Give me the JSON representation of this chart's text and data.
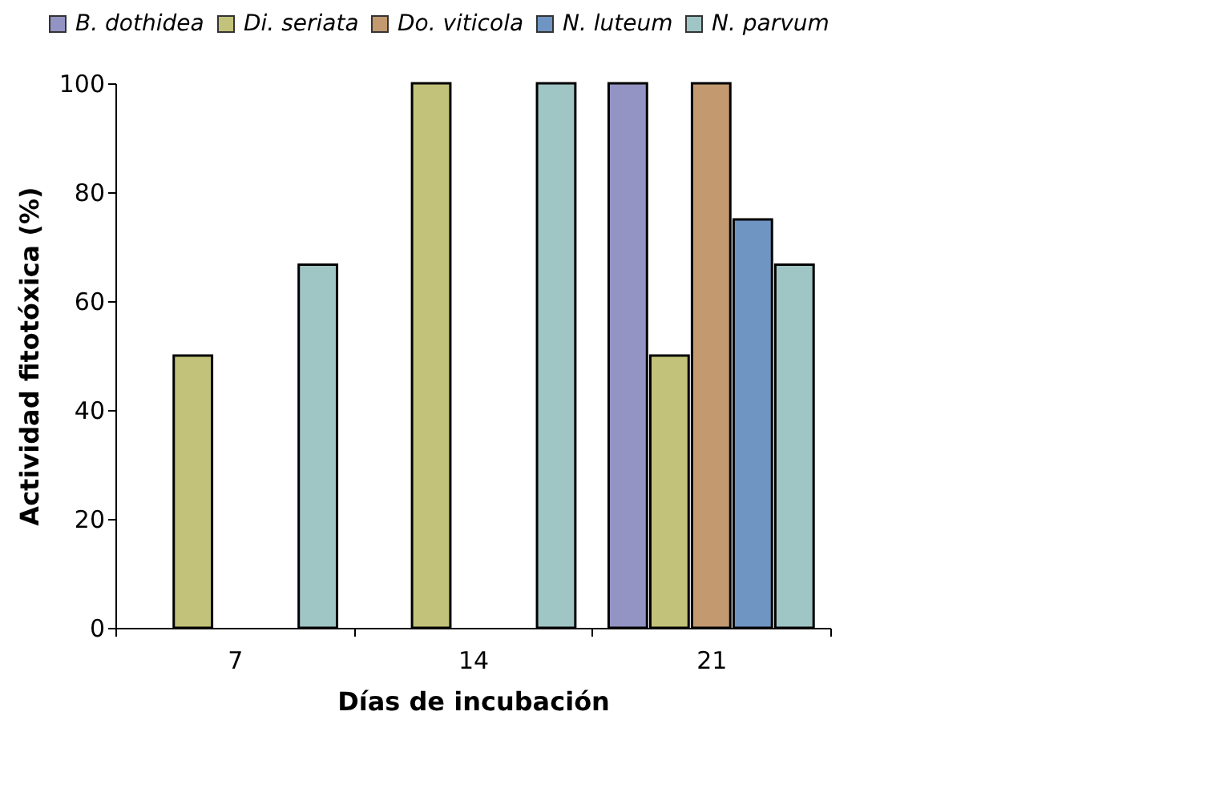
{
  "chart_data": {
    "type": "bar",
    "xlabel": "Días de incubación",
    "ylabel": "Actividad fitotóxica (%)",
    "categories": [
      "7",
      "14",
      "21"
    ],
    "series": [
      {
        "name": "B. dothidea",
        "color": "#9393c4",
        "values": [
          null,
          null,
          100
        ]
      },
      {
        "name": "Di. seriata",
        "color": "#c2c27a",
        "values": [
          50,
          100,
          50
        ]
      },
      {
        "name": "Do. viticola",
        "color": "#c39970",
        "values": [
          null,
          null,
          100
        ]
      },
      {
        "name": "N. luteum",
        "color": "#6f95c2",
        "values": [
          null,
          null,
          75
        ]
      },
      {
        "name": "N. parvum",
        "color": "#9fc5c5",
        "values": [
          66.7,
          100,
          66.7
        ]
      }
    ],
    "ylim": [
      0,
      100
    ],
    "yticks": [
      0,
      20,
      40,
      60,
      80,
      100
    ],
    "grid": false,
    "legend": "top"
  }
}
